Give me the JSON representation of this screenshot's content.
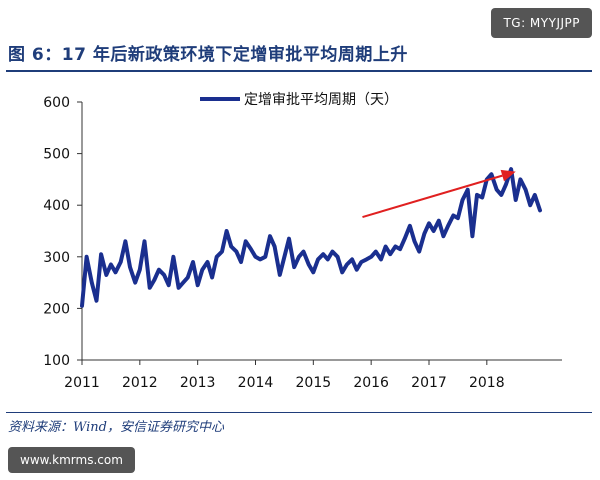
{
  "header": {
    "title": "图 6：17 年后新政策环境下定增审批平均周期上升"
  },
  "watermarks": {
    "top": "TG: MYYJJPP",
    "bottom": "www.kmrms.com"
  },
  "footer": {
    "source": "资料来源：Wind，安信证券研究中心"
  },
  "colors": {
    "series": "#1a2f8f",
    "arrow": "#e02020",
    "title": "#1f3d7a"
  },
  "chart_data": {
    "type": "line",
    "title": "",
    "xlabel": "",
    "ylabel": "",
    "ylim": [
      100,
      600
    ],
    "yticks": [
      100,
      200,
      300,
      400,
      500,
      600
    ],
    "xlim": [
      2011.0,
      2019.3
    ],
    "xtick_values": [
      2011,
      2012,
      2013,
      2014,
      2015,
      2016,
      2017,
      2018
    ],
    "xtick_labels": [
      "2011",
      "2012",
      "2013",
      "2014",
      "2015",
      "2016",
      "2017",
      "2018"
    ],
    "grid": false,
    "legend_position": "top",
    "annotations": [
      {
        "type": "arrow",
        "description": "upward trend arrow",
        "from": [
          2015.85,
          377
        ],
        "to": [
          2018.5,
          465
        ]
      }
    ],
    "series": [
      {
        "name": "定增审批平均周期（天）",
        "x": [
          2011.0,
          2011.08,
          2011.17,
          2011.25,
          2011.33,
          2011.42,
          2011.5,
          2011.58,
          2011.67,
          2011.75,
          2011.83,
          2011.92,
          2012.0,
          2012.08,
          2012.17,
          2012.25,
          2012.33,
          2012.42,
          2012.5,
          2012.58,
          2012.67,
          2012.75,
          2012.83,
          2012.92,
          2013.0,
          2013.08,
          2013.17,
          2013.25,
          2013.33,
          2013.42,
          2013.5,
          2013.58,
          2013.67,
          2013.75,
          2013.83,
          2013.92,
          2014.0,
          2014.08,
          2014.17,
          2014.25,
          2014.33,
          2014.42,
          2014.5,
          2014.58,
          2014.67,
          2014.75,
          2014.83,
          2014.92,
          2015.0,
          2015.08,
          2015.17,
          2015.25,
          2015.33,
          2015.42,
          2015.5,
          2015.58,
          2015.67,
          2015.75,
          2015.83,
          2015.92,
          2016.0,
          2016.08,
          2016.17,
          2016.25,
          2016.33,
          2016.42,
          2016.5,
          2016.58,
          2016.67,
          2016.75,
          2016.83,
          2016.92,
          2017.0,
          2017.08,
          2017.17,
          2017.25,
          2017.33,
          2017.42,
          2017.5,
          2017.58,
          2017.67,
          2017.75,
          2017.83,
          2017.92,
          2018.0,
          2018.08,
          2018.17,
          2018.25,
          2018.33,
          2018.42,
          2018.5,
          2018.58,
          2018.67,
          2018.75,
          2018.83,
          2018.92
        ],
        "y": [
          205,
          300,
          250,
          215,
          305,
          265,
          285,
          270,
          290,
          330,
          280,
          250,
          275,
          330,
          240,
          255,
          275,
          265,
          245,
          300,
          240,
          250,
          260,
          290,
          245,
          275,
          290,
          260,
          300,
          310,
          350,
          320,
          310,
          290,
          330,
          315,
          300,
          295,
          300,
          340,
          320,
          265,
          300,
          335,
          280,
          300,
          310,
          285,
          270,
          295,
          305,
          295,
          310,
          300,
          270,
          285,
          295,
          275,
          290,
          295,
          300,
          310,
          295,
          320,
          305,
          320,
          315,
          335,
          360,
          330,
          310,
          345,
          365,
          350,
          370,
          340,
          360,
          380,
          375,
          410,
          430,
          340,
          420,
          415,
          450,
          460,
          430,
          420,
          440,
          470,
          410,
          450,
          430,
          400,
          420,
          390
        ]
      }
    ]
  }
}
